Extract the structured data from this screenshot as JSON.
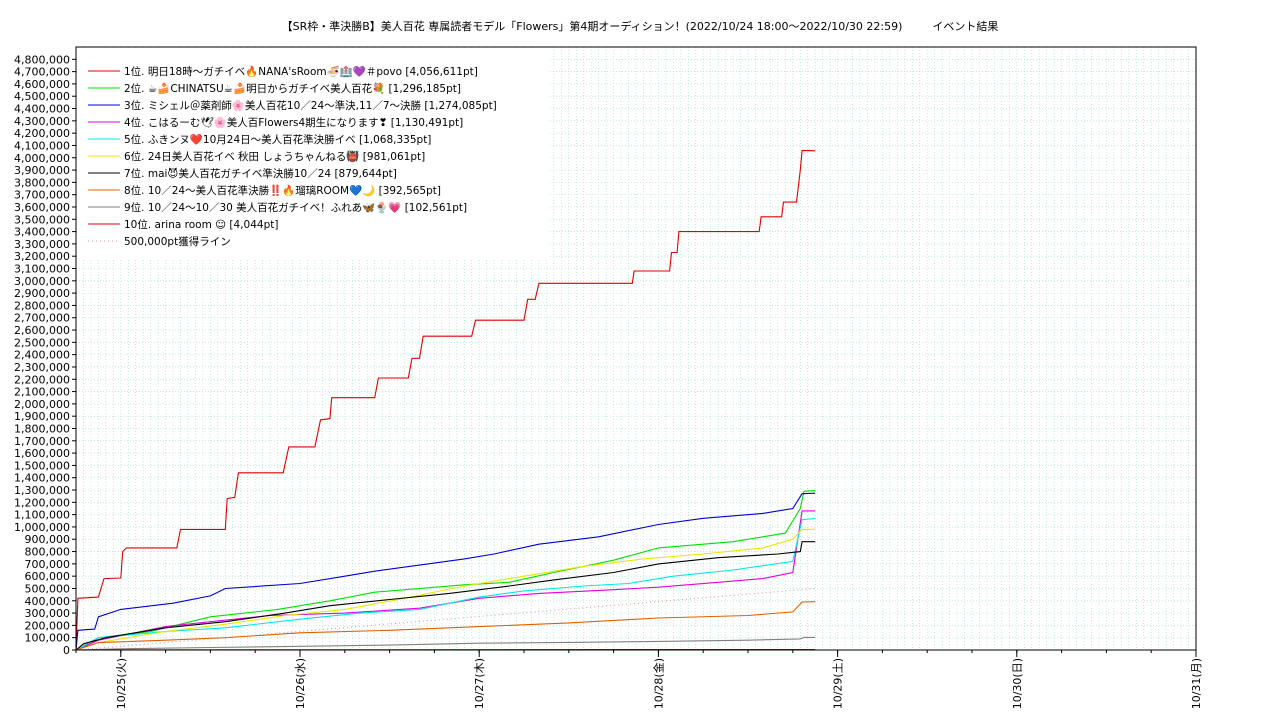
{
  "title": {
    "main": "【SR枠・準決勝B】美人百花 専属読者モデル「Flowers」第4期オーディション！(2022/10/24 18:00〜2022/10/30 22:59)",
    "suffix": "イベント結果"
  },
  "colors": {
    "background": "#ffffff",
    "grid": "#a0e0c8",
    "axis": "#000000"
  },
  "chart_data": {
    "type": "line",
    "title": "【SR枠・準決勝B】美人百花 専属読者モデル「Flowers」第4期オーディション！(2022/10/24 18:00〜2022/10/30 22:59) イベント結果",
    "xlabel": "",
    "ylabel": "",
    "xlim": [
      "2022-10-24 18:00",
      "2022-10-31 00:00"
    ],
    "ylim": [
      0,
      4900000
    ],
    "y_ticks": [
      0,
      100000,
      200000,
      300000,
      400000,
      500000,
      600000,
      700000,
      800000,
      900000,
      1000000,
      1100000,
      1200000,
      1300000,
      1400000,
      1500000,
      1600000,
      1700000,
      1800000,
      1900000,
      2000000,
      2100000,
      2200000,
      2300000,
      2400000,
      2500000,
      2600000,
      2700000,
      2800000,
      2900000,
      3000000,
      3100000,
      3200000,
      3300000,
      3400000,
      3500000,
      3600000,
      3700000,
      3800000,
      3900000,
      4000000,
      4100000,
      4200000,
      4300000,
      4400000,
      4500000,
      4600000,
      4700000,
      4800000
    ],
    "y_tick_labels": [
      "0",
      "100,000",
      "200,000",
      "300,000",
      "400,000",
      "500,000",
      "600,000",
      "700,000",
      "800,000",
      "900,000",
      "1,000,000",
      "1,100,000",
      "1,200,000",
      "1,300,000",
      "1,400,000",
      "1,500,000",
      "1,600,000",
      "1,700,000",
      "1,800,000",
      "1,900,000",
      "2,000,000",
      "2,100,000",
      "2,200,000",
      "2,300,000",
      "2,400,000",
      "2,500,000",
      "2,600,000",
      "2,700,000",
      "2,800,000",
      "2,900,000",
      "3,000,000",
      "3,100,000",
      "3,200,000",
      "3,300,000",
      "3,400,000",
      "3,500,000",
      "3,600,000",
      "3,700,000",
      "3,800,000",
      "3,900,000",
      "4,000,000",
      "4,100,000",
      "4,200,000",
      "4,300,000",
      "4,400,000",
      "4,500,000",
      "4,600,000",
      "4,700,000",
      "4,800,000"
    ],
    "x_ticks": [
      {
        "x": "2022-10-25 00:00",
        "label": "10/25(火)"
      },
      {
        "x": "2022-10-26 00:00",
        "label": "10/26(水)"
      },
      {
        "x": "2022-10-27 00:00",
        "label": "10/27(木)"
      },
      {
        "x": "2022-10-28 00:00",
        "label": "10/28(金)"
      },
      {
        "x": "2022-10-29 00:00",
        "label": "10/29(土)"
      },
      {
        "x": "2022-10-30 00:00",
        "label": "10/30(日)"
      },
      {
        "x": "2022-10-31 00:00",
        "label": "10/31(月)"
      }
    ],
    "grid": true,
    "legend_position": "top-left",
    "series": [
      {
        "name": "1位. 明日18時〜ガチイベ🔥NANA'sRoom🍜🏥💜＃povo [4,056,611pt]",
        "color": "#e00000",
        "points": [
          [
            "2022-10-24 18:00",
            0
          ],
          [
            "2022-10-24 18:15",
            420000
          ],
          [
            "2022-10-24 21:00",
            430000
          ],
          [
            "2022-10-24 21:45",
            580000
          ],
          [
            "2022-10-25 00:00",
            585000
          ],
          [
            "2022-10-25 00:15",
            800000
          ],
          [
            "2022-10-25 00:45",
            830000
          ],
          [
            "2022-10-25 07:30",
            830000
          ],
          [
            "2022-10-25 08:00",
            980000
          ],
          [
            "2022-10-25 14:00",
            980000
          ],
          [
            "2022-10-25 14:15",
            1230000
          ],
          [
            "2022-10-25 15:15",
            1240000
          ],
          [
            "2022-10-25 15:45",
            1440000
          ],
          [
            "2022-10-25 21:45",
            1440000
          ],
          [
            "2022-10-25 22:30",
            1650000
          ],
          [
            "2022-10-26 02:00",
            1650000
          ],
          [
            "2022-10-26 02:45",
            1870000
          ],
          [
            "2022-10-26 04:00",
            1880000
          ],
          [
            "2022-10-26 04:15",
            2050000
          ],
          [
            "2022-10-26 10:00",
            2050000
          ],
          [
            "2022-10-26 10:30",
            2210000
          ],
          [
            "2022-10-26 14:30",
            2210000
          ],
          [
            "2022-10-26 15:00",
            2370000
          ],
          [
            "2022-10-26 16:00",
            2370000
          ],
          [
            "2022-10-26 16:30",
            2550000
          ],
          [
            "2022-10-26 23:00",
            2550000
          ],
          [
            "2022-10-26 23:30",
            2680000
          ],
          [
            "2022-10-27 06:00",
            2680000
          ],
          [
            "2022-10-27 06:30",
            2850000
          ],
          [
            "2022-10-27 07:30",
            2850000
          ],
          [
            "2022-10-27 08:00",
            2980000
          ],
          [
            "2022-10-27 20:30",
            2980000
          ],
          [
            "2022-10-27 20:45",
            3080000
          ],
          [
            "2022-10-28 01:30",
            3080000
          ],
          [
            "2022-10-28 01:45",
            3230000
          ],
          [
            "2022-10-28 02:30",
            3230000
          ],
          [
            "2022-10-28 02:45",
            3400000
          ],
          [
            "2022-10-28 13:30",
            3400000
          ],
          [
            "2022-10-28 13:45",
            3520000
          ],
          [
            "2022-10-28 16:30",
            3520000
          ],
          [
            "2022-10-28 16:45",
            3640000
          ],
          [
            "2022-10-28 18:30",
            3640000
          ],
          [
            "2022-10-28 19:00",
            3900000
          ],
          [
            "2022-10-28 19:15",
            4060000
          ],
          [
            "2022-10-28 21:00",
            4056611
          ]
        ]
      },
      {
        "name": "2位. ☕🍰CHINATSU☕🍰明日からガチイベ美人百花💐 [1,296,185pt]",
        "color": "#00e000",
        "points": [
          [
            "2022-10-24 18:00",
            0
          ],
          [
            "2022-10-24 21:00",
            100000
          ],
          [
            "2022-10-25 04:00",
            150000
          ],
          [
            "2022-10-25 12:00",
            270000
          ],
          [
            "2022-10-25 21:00",
            330000
          ],
          [
            "2022-10-26 04:00",
            400000
          ],
          [
            "2022-10-26 10:00",
            470000
          ],
          [
            "2022-10-26 22:00",
            530000
          ],
          [
            "2022-10-27 04:00",
            550000
          ],
          [
            "2022-10-27 10:00",
            630000
          ],
          [
            "2022-10-27 18:00",
            730000
          ],
          [
            "2022-10-28 00:00",
            830000
          ],
          [
            "2022-10-28 10:00",
            880000
          ],
          [
            "2022-10-28 17:00",
            950000
          ],
          [
            "2022-10-28 19:00",
            1150000
          ],
          [
            "2022-10-28 19:30",
            1290000
          ],
          [
            "2022-10-28 21:00",
            1296185
          ]
        ]
      },
      {
        "name": "3位. ミシェル＠薬剤師🌸美人百花10／24〜準決,11／7〜決勝 [1,274,085pt]",
        "color": "#0000d0",
        "points": [
          [
            "2022-10-24 18:00",
            0
          ],
          [
            "2022-10-24 18:15",
            160000
          ],
          [
            "2022-10-24 20:30",
            170000
          ],
          [
            "2022-10-24 21:00",
            270000
          ],
          [
            "2022-10-25 00:00",
            330000
          ],
          [
            "2022-10-25 07:00",
            380000
          ],
          [
            "2022-10-25 12:00",
            440000
          ],
          [
            "2022-10-25 14:00",
            500000
          ],
          [
            "2022-10-26 00:00",
            540000
          ],
          [
            "2022-10-26 06:00",
            600000
          ],
          [
            "2022-10-26 10:00",
            640000
          ],
          [
            "2022-10-26 16:00",
            690000
          ],
          [
            "2022-10-26 22:00",
            740000
          ],
          [
            "2022-10-27 02:00",
            780000
          ],
          [
            "2022-10-27 08:00",
            860000
          ],
          [
            "2022-10-27 16:00",
            920000
          ],
          [
            "2022-10-28 00:00",
            1020000
          ],
          [
            "2022-10-28 06:00",
            1070000
          ],
          [
            "2022-10-28 14:00",
            1110000
          ],
          [
            "2022-10-28 18:00",
            1150000
          ],
          [
            "2022-10-28 19:15",
            1270000
          ],
          [
            "2022-10-28 21:00",
            1274085
          ]
        ]
      },
      {
        "name": "4位. こはるーむ🕊🌸美人百Flowers4期生になります❣ [1,130,491pt]",
        "color": "#e000e0",
        "points": [
          [
            "2022-10-24 18:00",
            0
          ],
          [
            "2022-10-24 21:00",
            80000
          ],
          [
            "2022-10-25 06:00",
            190000
          ],
          [
            "2022-10-25 12:00",
            230000
          ],
          [
            "2022-10-25 20:00",
            280000
          ],
          [
            "2022-10-26 06:00",
            300000
          ],
          [
            "2022-10-26 16:00",
            340000
          ],
          [
            "2022-10-27 00:00",
            420000
          ],
          [
            "2022-10-27 08:00",
            460000
          ],
          [
            "2022-10-27 18:00",
            490000
          ],
          [
            "2022-10-28 00:00",
            510000
          ],
          [
            "2022-10-28 08:00",
            550000
          ],
          [
            "2022-10-28 14:00",
            580000
          ],
          [
            "2022-10-28 18:00",
            630000
          ],
          [
            "2022-10-28 19:15",
            1130000
          ],
          [
            "2022-10-28 21:00",
            1130491
          ]
        ]
      },
      {
        "name": "5位. ふきンヌ❤️10月24日〜美人百花準決勝イベ [1,068,335pt]",
        "color": "#00e8e8",
        "points": [
          [
            "2022-10-24 18:00",
            0
          ],
          [
            "2022-10-24 21:00",
            100000
          ],
          [
            "2022-10-25 06:00",
            150000
          ],
          [
            "2022-10-25 14:00",
            180000
          ],
          [
            "2022-10-26 00:00",
            250000
          ],
          [
            "2022-10-26 08:00",
            300000
          ],
          [
            "2022-10-26 16:00",
            330000
          ],
          [
            "2022-10-27 00:00",
            430000
          ],
          [
            "2022-10-27 06:00",
            480000
          ],
          [
            "2022-10-27 14:00",
            520000
          ],
          [
            "2022-10-27 20:00",
            540000
          ],
          [
            "2022-10-28 02:00",
            600000
          ],
          [
            "2022-10-28 10:00",
            650000
          ],
          [
            "2022-10-28 18:00",
            720000
          ],
          [
            "2022-10-28 19:15",
            1060000
          ],
          [
            "2022-10-28 21:00",
            1068335
          ]
        ]
      },
      {
        "name": "6位. 24日美人百花イベ 秋田 しょうちゃんねる👹 [981,061pt]",
        "color": "#e8e800",
        "points": [
          [
            "2022-10-24 18:00",
            0
          ],
          [
            "2022-10-24 21:00",
            60000
          ],
          [
            "2022-10-25 06:00",
            150000
          ],
          [
            "2022-10-25 14:00",
            210000
          ],
          [
            "2022-10-25 22:00",
            280000
          ],
          [
            "2022-10-26 06:00",
            330000
          ],
          [
            "2022-10-26 14:00",
            420000
          ],
          [
            "2022-10-26 22:00",
            520000
          ],
          [
            "2022-10-27 06:00",
            600000
          ],
          [
            "2022-10-27 14:00",
            680000
          ],
          [
            "2022-10-27 22:00",
            740000
          ],
          [
            "2022-10-28 06:00",
            780000
          ],
          [
            "2022-10-28 14:00",
            830000
          ],
          [
            "2022-10-28 18:00",
            900000
          ],
          [
            "2022-10-28 19:15",
            980000
          ],
          [
            "2022-10-28 21:00",
            981061
          ]
        ]
      },
      {
        "name": "7位. mai😈美人百花ガチイベ準決勝10／24 [879,644pt]",
        "color": "#000000",
        "points": [
          [
            "2022-10-24 18:00",
            0
          ],
          [
            "2022-10-24 19:00",
            50000
          ],
          [
            "2022-10-24 22:00",
            100000
          ],
          [
            "2022-10-25 06:00",
            180000
          ],
          [
            "2022-10-25 14:00",
            230000
          ],
          [
            "2022-10-25 22:00",
            300000
          ],
          [
            "2022-10-26 04:00",
            360000
          ],
          [
            "2022-10-26 12:00",
            410000
          ],
          [
            "2022-10-26 20:00",
            460000
          ],
          [
            "2022-10-27 04:00",
            520000
          ],
          [
            "2022-10-27 10:00",
            570000
          ],
          [
            "2022-10-27 18:00",
            630000
          ],
          [
            "2022-10-28 00:00",
            700000
          ],
          [
            "2022-10-28 08:00",
            750000
          ],
          [
            "2022-10-28 16:00",
            780000
          ],
          [
            "2022-10-28 19:00",
            800000
          ],
          [
            "2022-10-28 19:15",
            880000
          ],
          [
            "2022-10-28 21:00",
            879644
          ]
        ]
      },
      {
        "name": "8位. 10／24〜美人百花準決勝‼️🔥瑠璃ROOM💙🌙 [392,565pt]",
        "color": "#e06000",
        "points": [
          [
            "2022-10-24 18:00",
            0
          ],
          [
            "2022-10-24 21:00",
            60000
          ],
          [
            "2022-10-25 06:00",
            80000
          ],
          [
            "2022-10-25 14:00",
            100000
          ],
          [
            "2022-10-26 00:00",
            140000
          ],
          [
            "2022-10-26 12:00",
            160000
          ],
          [
            "2022-10-27 00:00",
            190000
          ],
          [
            "2022-10-27 12:00",
            220000
          ],
          [
            "2022-10-28 00:00",
            260000
          ],
          [
            "2022-10-28 12:00",
            280000
          ],
          [
            "2022-10-28 18:00",
            310000
          ],
          [
            "2022-10-28 19:15",
            390000
          ],
          [
            "2022-10-28 21:00",
            392565
          ]
        ]
      },
      {
        "name": "9位. 10／24〜10／30 美人百花ガチイベ！ふれあ🦋🍨💗 [102,561pt]",
        "color": "#808080",
        "points": [
          [
            "2022-10-24 18:00",
            0
          ],
          [
            "2022-10-25 00:00",
            10000
          ],
          [
            "2022-10-25 12:00",
            20000
          ],
          [
            "2022-10-26 00:00",
            30000
          ],
          [
            "2022-10-26 12:00",
            40000
          ],
          [
            "2022-10-27 00:00",
            55000
          ],
          [
            "2022-10-27 12:00",
            62000
          ],
          [
            "2022-10-28 00:00",
            70000
          ],
          [
            "2022-10-28 12:00",
            80000
          ],
          [
            "2022-10-28 19:00",
            90000
          ],
          [
            "2022-10-28 19:30",
            102561
          ],
          [
            "2022-10-28 21:00",
            102561
          ]
        ]
      },
      {
        "name": "10位. arina room ☺ [4,044pt]",
        "color": "#e00000",
        "points": [
          [
            "2022-10-24 18:00",
            0
          ],
          [
            "2022-10-26 00:00",
            2000
          ],
          [
            "2022-10-28 21:00",
            4044
          ]
        ]
      },
      {
        "name": "500,000pt獲得ライン",
        "color": "#d0a0a0",
        "dashed": true,
        "points": [
          [
            "2022-10-24 18:00",
            0
          ],
          [
            "2022-10-28 21:00",
            500000
          ]
        ]
      }
    ]
  }
}
